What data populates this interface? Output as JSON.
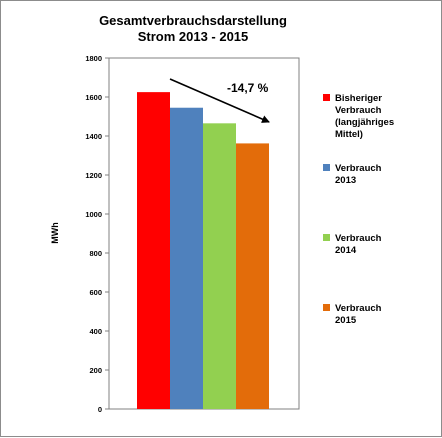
{
  "chart_data": {
    "type": "bar",
    "title_lines": [
      "Gesamtverbrauchsdarstellung",
      "Strom 2013 - 2015"
    ],
    "ylabel": "MWh",
    "xlabel": "",
    "ylim": [
      0,
      1800
    ],
    "yticks": [
      0,
      200,
      400,
      600,
      800,
      1000,
      1200,
      1400,
      1600,
      1800
    ],
    "grid": false,
    "legend_position": "right",
    "series": [
      {
        "name_lines": [
          "Bisheriger",
          "Verbrauch",
          "(langjähriges",
          "Mittel)"
        ],
        "value": 1625,
        "color": "#ff0000"
      },
      {
        "name_lines": [
          "Verbrauch",
          "2013"
        ],
        "value": 1545,
        "color": "#4f81bd"
      },
      {
        "name_lines": [
          "Verbrauch",
          "2014"
        ],
        "value": 1465,
        "color": "#92d050"
      },
      {
        "name_lines": [
          "Verbrauch",
          "2015"
        ],
        "value": 1362,
        "color": "#e36c0a"
      }
    ],
    "annotation": {
      "text": "-14,7 %"
    }
  }
}
